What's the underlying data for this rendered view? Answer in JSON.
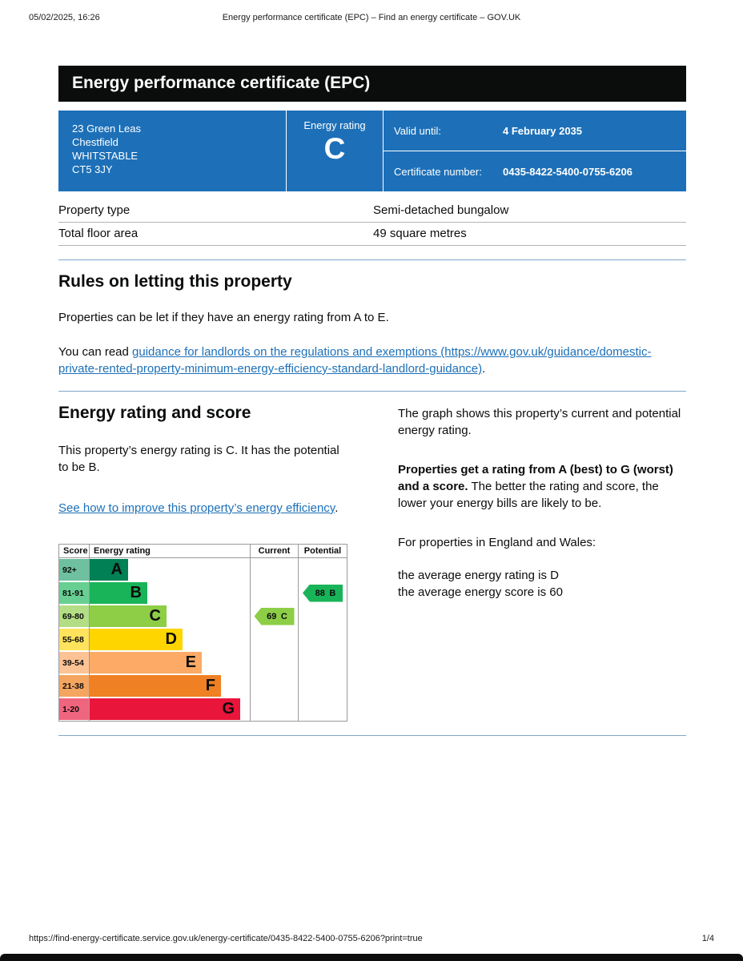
{
  "print_header": {
    "datetime": "05/02/2025, 16:26",
    "title": "Energy performance certificate (EPC) – Find an energy certificate – GOV.UK"
  },
  "banner": {
    "title": "Energy performance certificate (EPC)"
  },
  "brand": {
    "blue": "#1d70b8",
    "black": "#0b0c0c"
  },
  "summary": {
    "address_lines": [
      "23 Green Leas",
      "Chestfield",
      "WHITSTABLE",
      "CT5 3JY"
    ],
    "energy_rating_label": "Energy rating",
    "energy_rating": "C",
    "valid_until_label": "Valid until:",
    "valid_until": "4 February 2035",
    "certificate_number_label": "Certificate number:",
    "certificate_number": "0435-8422-5400-0755-6206"
  },
  "property_details": {
    "rows": [
      {
        "label": "Property type",
        "value": "Semi-detached bungalow"
      },
      {
        "label": "Total floor area",
        "value": "49 square metres"
      }
    ]
  },
  "letting_rules": {
    "heading": "Rules on letting this property",
    "paragraph1": "Properties can be let if they have an energy rating from A to E.",
    "paragraph2_prefix": "You can read ",
    "link_text": "guidance for landlords on the regulations and exemptions (https://www.gov.uk/guidance/domestic-private-rented-property-minimum-energy-efficiency-standard-landlord-guidance)",
    "paragraph2_suffix": "."
  },
  "rating_section": {
    "heading": "Energy rating and score",
    "paragraph1": "This property’s energy rating is C. It has the potential to be B.",
    "link_text": "See how to improve this property’s energy efficiency",
    "link_suffix": ".",
    "right_paragraph1": "The graph shows this property’s current and potential energy rating.",
    "right_bold": "Properties get a rating from A (best) to G (worst) and a score.",
    "right_text": " The better the rating and score, the lower your energy bills are likely to be.",
    "right_paragraph3": "For properties in England and Wales:",
    "right_line1": "the average energy rating is D",
    "right_line2": "the average energy score is 60"
  },
  "chart_data": {
    "type": "epc-rating-bands",
    "headers": {
      "score": "Score",
      "rating": "Energy rating",
      "current": "Current",
      "potential": "Potential"
    },
    "bands": [
      {
        "score": "92+",
        "letter": "A",
        "color": "#008054",
        "score_bg": "#6fc0a0",
        "width_pct": 24
      },
      {
        "score": "81-91",
        "letter": "B",
        "color": "#19b459",
        "score_bg": "#68cf93",
        "width_pct": 36
      },
      {
        "score": "69-80",
        "letter": "C",
        "color": "#8dce46",
        "score_bg": "#b4de85",
        "width_pct": 48
      },
      {
        "score": "55-68",
        "letter": "D",
        "color": "#ffd500",
        "score_bg": "#ffe35c",
        "width_pct": 58
      },
      {
        "score": "39-54",
        "letter": "E",
        "color": "#fcaa65",
        "score_bg": "#fdc395",
        "width_pct": 70
      },
      {
        "score": "21-38",
        "letter": "F",
        "color": "#ef8023",
        "score_bg": "#f4a55f",
        "width_pct": 82
      },
      {
        "score": "1-20",
        "letter": "G",
        "color": "#e9153b",
        "score_bg": "#f0657e",
        "width_pct": 94
      }
    ],
    "current": {
      "value": 69,
      "letter": "C",
      "color": "#8dce46",
      "row_index": 2
    },
    "potential": {
      "value": 88,
      "letter": "B",
      "color": "#19b459",
      "row_index": 1
    }
  },
  "footer": {
    "url": "https://find-energy-certificate.service.gov.uk/energy-certificate/0435-8422-5400-0755-6206?print=true",
    "page": "1/4"
  }
}
